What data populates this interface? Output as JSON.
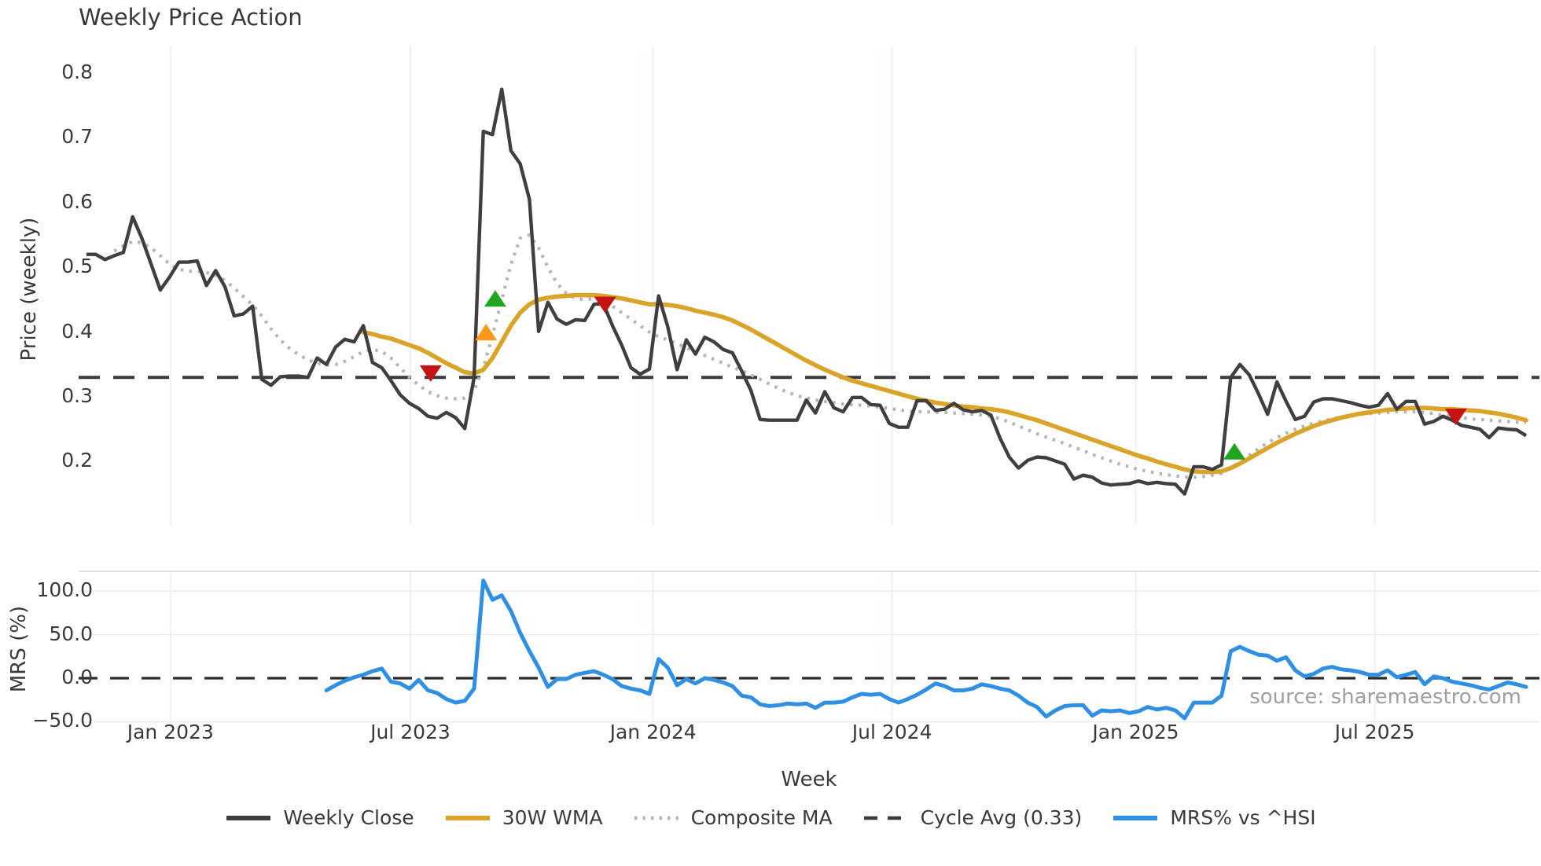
{
  "title": "Weekly Price Action",
  "source_note": "source: sharemaestro.com",
  "colors": {
    "weekly_close": "#3f3f3f",
    "wma30": "#d9a429",
    "composite_ma": "#b5b5b5",
    "cycle_avg": "#3a3a3a",
    "mrs": "#2f8fe3",
    "buy_marker": "#1fa51f",
    "weak_buy_marker": "#ff9718",
    "sell_marker": "#c51212",
    "gridline": "#eef1f6",
    "panel_border": "#d8d8d8",
    "h_gridline": "#ececf0"
  },
  "legend": [
    {
      "label": "Weekly Close",
      "color": "#3f3f3f",
      "style": "solid"
    },
    {
      "label": "30W WMA",
      "color": "#d9a429",
      "style": "solid"
    },
    {
      "label": "Composite MA",
      "color": "#b5b5b5",
      "style": "dotted"
    },
    {
      "label": "Cycle Avg (0.33)",
      "color": "#3a3a3a",
      "style": "dashed"
    },
    {
      "label": "MRS% vs ^HSI",
      "color": "#2f8fe3",
      "style": "solid"
    }
  ],
  "chart_data": {
    "type": "line",
    "title": "Weekly Price Action",
    "x_axis": {
      "label": "Week",
      "tick_labels": [
        "Jan 2023",
        "Jul 2023",
        "Jan 2024",
        "Jul 2024",
        "Jan 2025",
        "Jul 2025"
      ],
      "tick_weeks": [
        9.1,
        35.1,
        61.4,
        87.3,
        113.7,
        139.6
      ],
      "total_weeks": 156,
      "start_date_approx": "Oct 2022",
      "end_date_approx": "Nov 2025"
    },
    "price_panel": {
      "ylabel": "Price (weekly)",
      "ytick_labels": [
        "0.8",
        "0.7",
        "0.6",
        "0.5",
        "0.4",
        "0.3",
        "0.2"
      ],
      "yticks": [
        0.8,
        0.7,
        0.6,
        0.5,
        0.4,
        0.3,
        0.2
      ],
      "ylim": [
        0.13,
        0.82
      ],
      "grid": "vertical-only",
      "series": [
        {
          "name": "Weekly Close",
          "style": "solid",
          "start_week": 0,
          "values": [
            0.52,
            0.52,
            0.512,
            0.518,
            0.523,
            0.578,
            0.545,
            0.505,
            0.465,
            0.485,
            0.508,
            0.508,
            0.51,
            0.472,
            0.495,
            0.47,
            0.425,
            0.428,
            0.44,
            0.327,
            0.318,
            0.331,
            0.332,
            0.332,
            0.33,
            0.36,
            0.35,
            0.377,
            0.389,
            0.385,
            0.41,
            0.353,
            0.345,
            0.325,
            0.303,
            0.29,
            0.282,
            0.27,
            0.267,
            0.276,
            0.268,
            0.251,
            0.33,
            0.71,
            0.705,
            0.775,
            0.68,
            0.66,
            0.605,
            0.401,
            0.446,
            0.42,
            0.412,
            0.419,
            0.418,
            0.443,
            0.444,
            0.41,
            0.38,
            0.345,
            0.335,
            0.343,
            0.456,
            0.408,
            0.342,
            0.388,
            0.366,
            0.392,
            0.385,
            0.373,
            0.368,
            0.34,
            0.31,
            0.265,
            0.264,
            0.264,
            0.264,
            0.264,
            0.295,
            0.275,
            0.308,
            0.283,
            0.277,
            0.299,
            0.299,
            0.288,
            0.287,
            0.259,
            0.253,
            0.253,
            0.294,
            0.294,
            0.279,
            0.281,
            0.29,
            0.28,
            0.277,
            0.279,
            0.272,
            0.236,
            0.207,
            0.19,
            0.202,
            0.207,
            0.206,
            0.201,
            0.196,
            0.173,
            0.179,
            0.176,
            0.167,
            0.164,
            0.165,
            0.166,
            0.17,
            0.166,
            0.168,
            0.166,
            0.165,
            0.15,
            0.192,
            0.192,
            0.188,
            0.195,
            0.33,
            0.35,
            0.334,
            0.305,
            0.273,
            0.323,
            0.293,
            0.265,
            0.27,
            0.292,
            0.297,
            0.297,
            0.294,
            0.291,
            0.287,
            0.284,
            0.287,
            0.305,
            0.281,
            0.293,
            0.293,
            0.258,
            0.262,
            0.27,
            0.264,
            0.256,
            0.253,
            0.25,
            0.237,
            0.252,
            0.25,
            0.249,
            0.24
          ]
        },
        {
          "name": "30W WMA",
          "style": "solid",
          "start_week": 30,
          "values": [
            0.4,
            0.397,
            0.393,
            0.39,
            0.385,
            0.38,
            0.375,
            0.368,
            0.36,
            0.352,
            0.345,
            0.338,
            0.336,
            0.342,
            0.36,
            0.385,
            0.41,
            0.43,
            0.443,
            0.45,
            0.453,
            0.455,
            0.456,
            0.457,
            0.457,
            0.457,
            0.456,
            0.454,
            0.452,
            0.449,
            0.446,
            0.443,
            0.443,
            0.442,
            0.44,
            0.437,
            0.433,
            0.43,
            0.427,
            0.423,
            0.418,
            0.411,
            0.404,
            0.396,
            0.388,
            0.38,
            0.372,
            0.364,
            0.356,
            0.349,
            0.342,
            0.336,
            0.33,
            0.325,
            0.321,
            0.317,
            0.313,
            0.309,
            0.305,
            0.301,
            0.297,
            0.294,
            0.291,
            0.289,
            0.287,
            0.285,
            0.284,
            0.282,
            0.281,
            0.279,
            0.276,
            0.272,
            0.268,
            0.264,
            0.259,
            0.254,
            0.249,
            0.244,
            0.239,
            0.234,
            0.229,
            0.224,
            0.219,
            0.214,
            0.209,
            0.205,
            0.2,
            0.196,
            0.192,
            0.188,
            0.185,
            0.184,
            0.184,
            0.185,
            0.19,
            0.197,
            0.205,
            0.213,
            0.221,
            0.229,
            0.236,
            0.243,
            0.249,
            0.255,
            0.26,
            0.264,
            0.268,
            0.271,
            0.274,
            0.276,
            0.278,
            0.28,
            0.281,
            0.282,
            0.283,
            0.283,
            0.282,
            0.281,
            0.281,
            0.28,
            0.279,
            0.278,
            0.276,
            0.274,
            0.271,
            0.268,
            0.264
          ]
        },
        {
          "name": "Composite MA",
          "style": "dotted",
          "start_week": 3,
          "values": [
            0.525,
            0.533,
            0.54,
            0.538,
            0.53,
            0.518,
            0.505,
            0.497,
            0.494,
            0.494,
            0.492,
            0.488,
            0.48,
            0.468,
            0.455,
            0.442,
            0.425,
            0.405,
            0.388,
            0.375,
            0.365,
            0.357,
            0.352,
            0.349,
            0.35,
            0.355,
            0.362,
            0.37,
            0.373,
            0.37,
            0.36,
            0.345,
            0.33,
            0.318,
            0.308,
            0.302,
            0.298,
            0.297,
            0.298,
            0.31,
            0.345,
            0.395,
            0.45,
            0.505,
            0.545,
            0.55,
            0.53,
            0.5,
            0.475,
            0.46,
            0.452,
            0.45,
            0.452,
            0.448,
            0.44,
            0.43,
            0.42,
            0.41,
            0.4,
            0.393,
            0.388,
            0.382,
            0.376,
            0.37,
            0.364,
            0.358,
            0.352,
            0.346,
            0.34,
            0.334,
            0.327,
            0.32,
            0.313,
            0.307,
            0.302,
            0.298,
            0.295,
            0.293,
            0.291,
            0.289,
            0.288,
            0.287,
            0.286,
            0.284,
            0.282,
            0.28,
            0.278,
            0.277,
            0.277,
            0.276,
            0.276,
            0.275,
            0.274,
            0.273,
            0.272,
            0.27,
            0.266,
            0.261,
            0.255,
            0.249,
            0.243,
            0.238,
            0.233,
            0.228,
            0.222,
            0.217,
            0.211,
            0.206,
            0.201,
            0.196,
            0.192,
            0.188,
            0.185,
            0.182,
            0.18,
            0.178,
            0.176,
            0.176,
            0.177,
            0.179,
            0.182,
            0.19,
            0.2,
            0.21,
            0.22,
            0.229,
            0.237,
            0.244,
            0.25,
            0.255,
            0.259,
            0.263,
            0.266,
            0.269,
            0.271,
            0.273,
            0.274,
            0.275,
            0.276,
            0.277,
            0.277,
            0.277,
            0.276,
            0.274,
            0.272,
            0.27,
            0.268,
            0.266,
            0.265,
            0.264,
            0.263,
            0.262,
            0.261,
            0.261
          ]
        },
        {
          "name": "Cycle Avg (0.33)",
          "style": "dashed",
          "constant_value": 0.33
        }
      ],
      "markers": {
        "buy": {
          "shape": "triangle-up",
          "points": [
            {
              "week": 44.3,
              "value": 0.452
            },
            {
              "week": 124.4,
              "value": 0.216
            }
          ]
        },
        "weak_buy": {
          "shape": "triangle-up",
          "points": [
            {
              "week": 43.3,
              "value": 0.4
            }
          ]
        },
        "sell": {
          "shape": "triangle-down",
          "points": [
            {
              "week": 37.3,
              "value": 0.336
            },
            {
              "week": 56.2,
              "value": 0.442
            },
            {
              "week": 148.4,
              "value": 0.269
            }
          ]
        }
      }
    },
    "mrs_panel": {
      "ylabel": "MRS (%)",
      "ytick_labels": [
        "100.0",
        "50.0",
        "0.0",
        "−50.0"
      ],
      "yticks": [
        100.0,
        50.0,
        0.0,
        -50.0
      ],
      "ylim": [
        -65,
        122
      ],
      "zero_line": 0,
      "series": [
        {
          "name": "MRS% vs ^HSI",
          "style": "solid",
          "start_week": 26,
          "values": [
            -14,
            -8,
            -3,
            1,
            4,
            8,
            11,
            -4,
            -6,
            -12,
            -2,
            -14,
            -17,
            -24,
            -28,
            -26,
            -12,
            112,
            90,
            95,
            77,
            52,
            31,
            12,
            -10,
            -1,
            -1,
            4,
            6,
            8,
            4,
            -1,
            -9,
            -12,
            -14,
            -18,
            22,
            12,
            -8,
            -1,
            -6,
            0,
            -2,
            -5,
            -9,
            -20,
            -22,
            -30,
            -32,
            -31,
            -29,
            -30,
            -29,
            -34,
            -28,
            -28,
            -27,
            -22,
            -18,
            -19,
            -18,
            -24,
            -28,
            -24,
            -19,
            -13,
            -6,
            -9,
            -14,
            -14,
            -12,
            -7,
            -9,
            -12,
            -14,
            -20,
            -28,
            -33,
            -44,
            -37,
            -32,
            -31,
            -31,
            -43,
            -37,
            -38,
            -37,
            -40,
            -38,
            -33,
            -36,
            -34,
            -37,
            -46,
            -28,
            -28,
            -28,
            -20,
            31,
            36,
            31,
            27,
            26,
            20,
            24,
            9,
            2,
            5,
            11,
            13,
            10,
            9,
            7,
            4,
            4,
            9,
            1,
            4,
            7,
            -7,
            2,
            0,
            -4,
            -6,
            -8,
            -11,
            -13,
            -9,
            -5,
            -7,
            -10
          ]
        }
      ]
    }
  }
}
